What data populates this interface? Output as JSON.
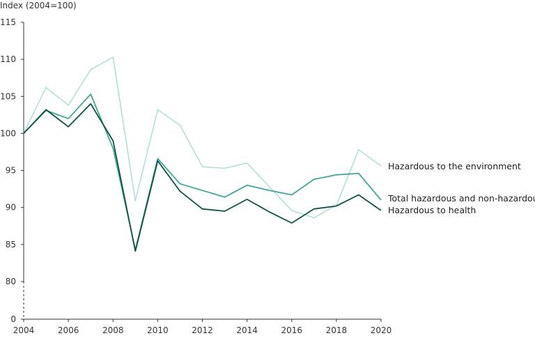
{
  "chart_data": {
    "type": "line",
    "ylabel": "Index (2004=100)",
    "x": [
      2004,
      2005,
      2006,
      2007,
      2008,
      2009,
      2010,
      2011,
      2012,
      2013,
      2014,
      2015,
      2016,
      2017,
      2018,
      2019,
      2020
    ],
    "x_ticks": [
      "2004",
      "2006",
      "2008",
      "2010",
      "2012",
      "2014",
      "2016",
      "2018",
      "2020"
    ],
    "y_ticks": [
      "0",
      "80",
      "85",
      "90",
      "95",
      "100",
      "105",
      "110",
      "115"
    ],
    "ylim": [
      0,
      115
    ],
    "y_axis_break": "between 0 and 80",
    "grid": false,
    "series": [
      {
        "name": "Hazardous to the environment",
        "color": "#a8dcd6",
        "values": [
          100,
          106.2,
          103.8,
          108.6,
          110.3,
          90.9,
          103.2,
          101.1,
          95.5,
          95.3,
          96.0,
          92.8,
          89.6,
          88.6,
          90.3,
          97.8,
          95.6
        ]
      },
      {
        "name": "Total hazardous and non-hazardous",
        "color": "#3fa699",
        "values": [
          100,
          103.1,
          102.0,
          105.3,
          98.0,
          84.3,
          96.6,
          93.2,
          92.3,
          91.4,
          93.0,
          92.3,
          91.7,
          93.8,
          94.4,
          94.6,
          91.0
        ]
      },
      {
        "name": "Hazardous to health",
        "color": "#0e5443",
        "values": [
          100,
          103.2,
          100.9,
          104.0,
          99.0,
          84.1,
          96.3,
          92.2,
          89.8,
          89.5,
          91.1,
          89.4,
          87.9,
          89.8,
          90.2,
          91.7,
          89.6
        ]
      }
    ]
  }
}
